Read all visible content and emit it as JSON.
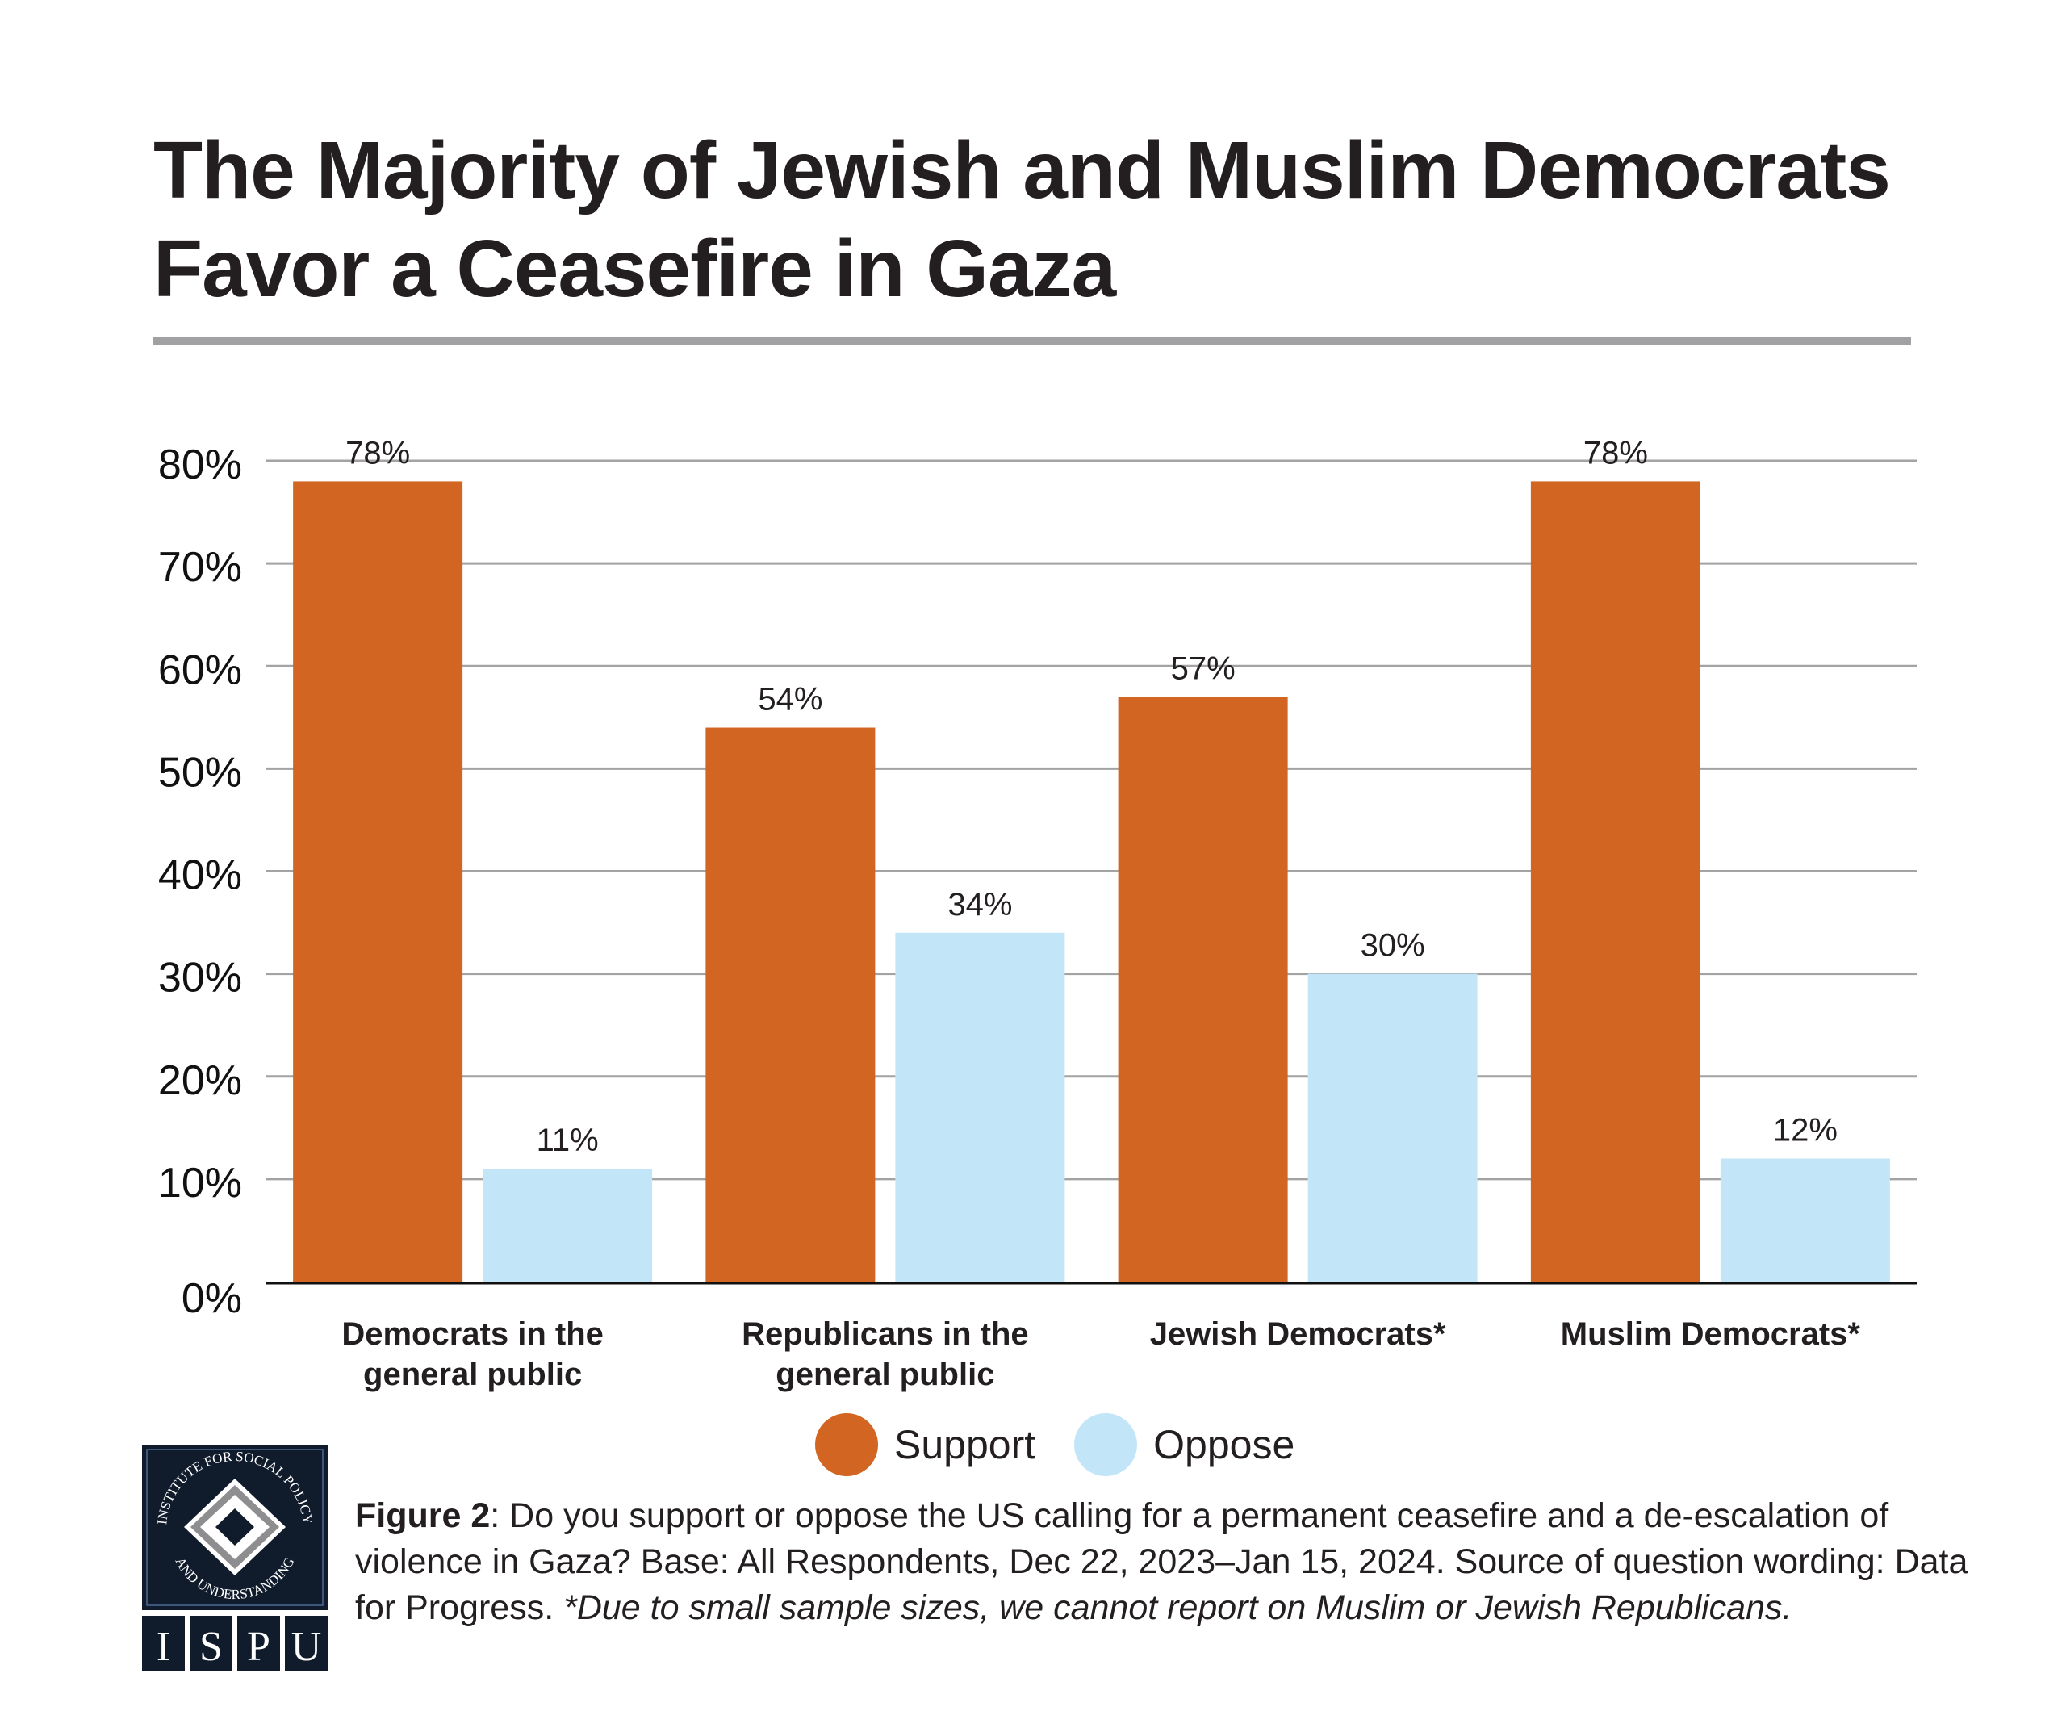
{
  "title": {
    "line1": "The Majority of Jewish and Muslim Democrats",
    "line2": "Favor a Ceasefire in Gaza"
  },
  "chart_data": {
    "type": "bar",
    "title": "The Majority of Jewish and Muslim Democrats Favor a Ceasefire in Gaza",
    "xlabel": "",
    "ylabel": "",
    "ylim": [
      0,
      80
    ],
    "yticks": [
      0,
      10,
      20,
      30,
      40,
      50,
      60,
      70,
      80
    ],
    "ytick_labels": [
      "0%",
      "10%",
      "20%",
      "30%",
      "40%",
      "50%",
      "60%",
      "70%",
      "80%"
    ],
    "grid": true,
    "legend_position": "bottom-center",
    "categories": [
      [
        "Democrats in the",
        "general public"
      ],
      [
        "Republicans in the",
        "general public"
      ],
      [
        "Jewish Democrats*"
      ],
      [
        "Muslim Democrats*"
      ]
    ],
    "series": [
      {
        "name": "Support",
        "color": "#d36522",
        "values": [
          78,
          54,
          57,
          78
        ],
        "labels": [
          "78%",
          "54%",
          "57%",
          "78%"
        ]
      },
      {
        "name": "Oppose",
        "color": "#c2e5f8",
        "values": [
          11,
          34,
          30,
          12
        ],
        "labels": [
          "11%",
          "34%",
          "30%",
          "12%"
        ]
      }
    ]
  },
  "legend": [
    {
      "label": "Support",
      "color": "#d36522"
    },
    {
      "label": "Oppose",
      "color": "#c2e5f8"
    }
  ],
  "logo": {
    "ring_text": "INSTITUTE FOR SOCIAL POLICY AND UNDERSTANDING",
    "letters": [
      "I",
      "S",
      "P",
      "U"
    ],
    "bg_color": "#101b2c"
  },
  "caption": {
    "figure_label": "Figure 2",
    "text": ": Do you support or oppose the US calling for a permanent ceasefire and a de-escalation of violence in Gaza? Base: All Respondents, Dec 22, 2023–Jan 15, 2024. Source of question wording: Data for Progress.",
    "note_italic": "*Due to small sample sizes, we cannot report on Muslim or Jewish Republicans."
  }
}
